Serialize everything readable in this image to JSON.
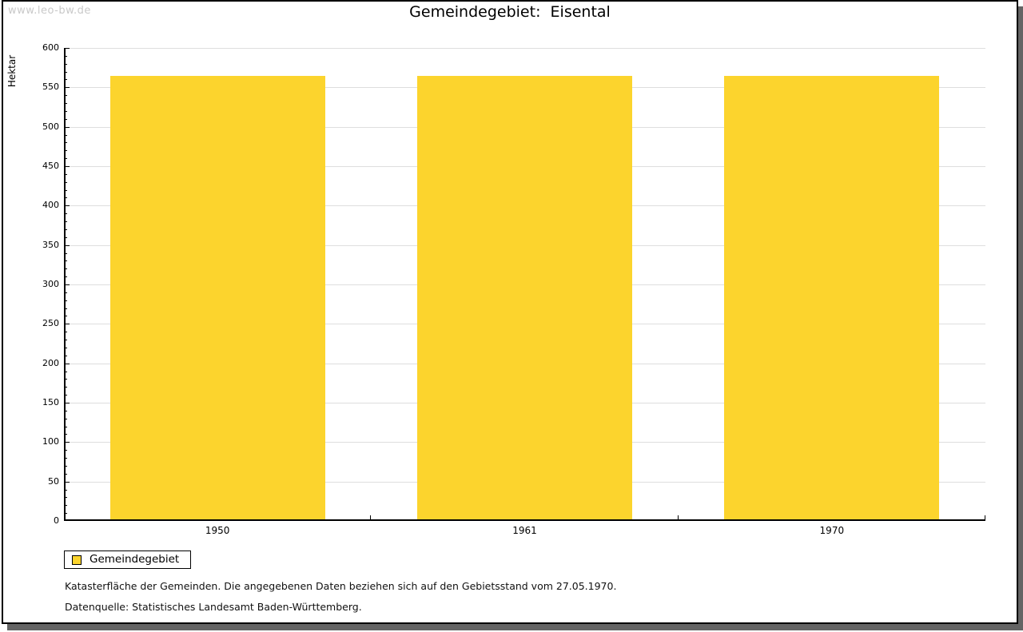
{
  "watermark": "www.leo-bw.de",
  "header": {
    "title": "Gemeindegebiet:  Eisental"
  },
  "chart_data": {
    "type": "bar",
    "title": "Gemeindegebiet: Eisental",
    "categories": [
      "1950",
      "1961",
      "1970"
    ],
    "values": [
      565,
      565,
      565
    ],
    "xlabel": "",
    "ylabel": "Hektar",
    "ylim": [
      0,
      600
    ],
    "y_major_step": 50,
    "y_minor_step": 10,
    "grid": true,
    "bar_color": "#fcd42d",
    "legend_entries": [
      "Gemeindegebiet"
    ],
    "legend_position": "bottom-left"
  },
  "legend": {
    "label": "Gemeindegebiet",
    "swatch_color": "#fcd42d"
  },
  "footnotes": {
    "line1": "Katasterfläche der Gemeinden. Die angegebenen Daten beziehen sich auf den Gebietsstand vom 27.05.1970.",
    "line2": "Datenquelle: Statistisches Landesamt Baden-Württemberg."
  },
  "colors": {
    "bar": "#fcd42d",
    "gridline": "#dedede",
    "axis": "#000000",
    "panel_border": "#000000",
    "panel_shadow": "#646464",
    "watermark": "#c9c9c9",
    "background": "#ffffff"
  }
}
